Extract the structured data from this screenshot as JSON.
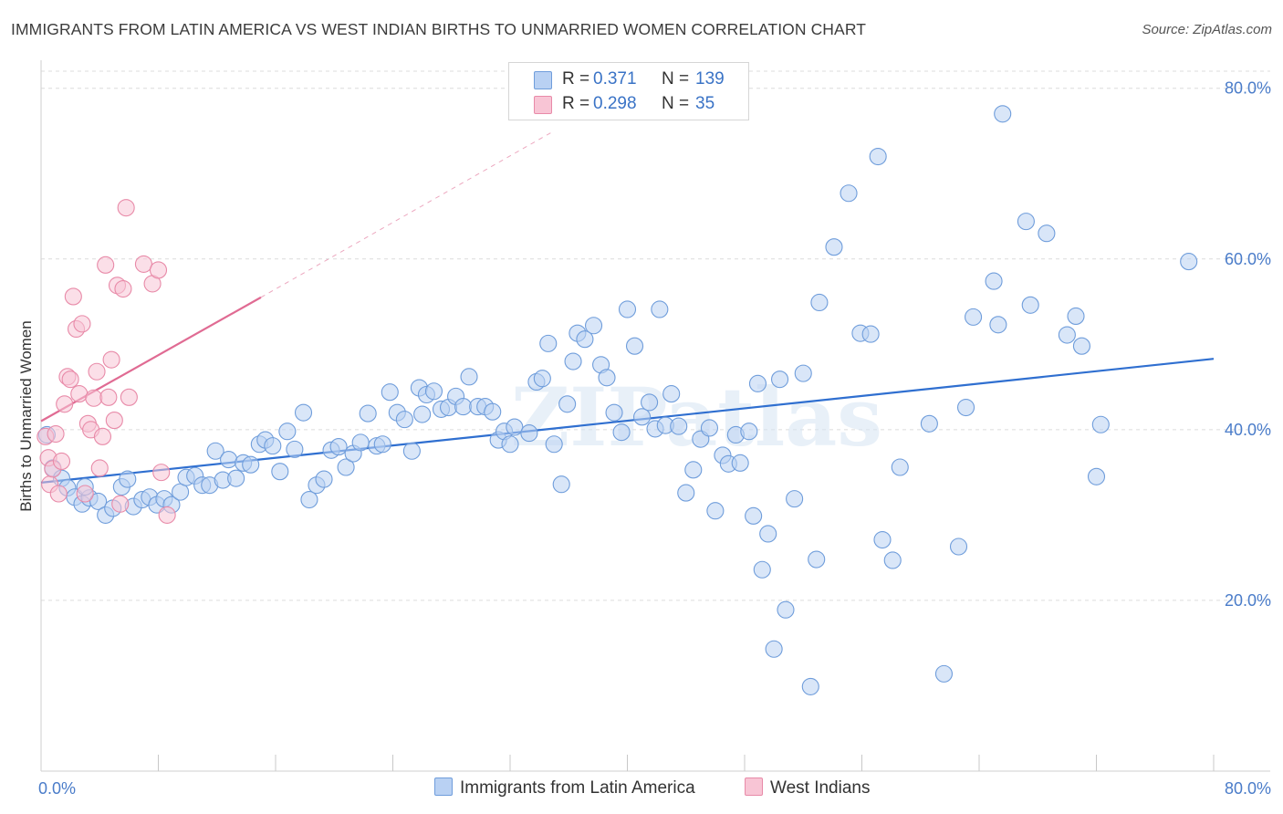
{
  "title": "IMMIGRANTS FROM LATIN AMERICA VS WEST INDIAN BIRTHS TO UNMARRIED WOMEN CORRELATION CHART",
  "source": "Source: ZipAtlas.com",
  "watermark": "ZIPatlas",
  "legend": {
    "rows": [
      {
        "r_label": "R =",
        "r_value": "0.371",
        "n_label": "N =",
        "n_value": "139",
        "color": "#b9d1f3",
        "border": "#6f9ddb"
      },
      {
        "r_label": "R =",
        "r_value": "0.298",
        "n_label": "N =",
        "n_value": "35",
        "color": "#f8c5d5",
        "border": "#e88aa8"
      }
    ]
  },
  "bottom_legend": [
    {
      "label": "Immigrants from Latin America",
      "color": "#b9d1f3",
      "border": "#6f9ddb"
    },
    {
      "label": "West Indians",
      "color": "#f8c5d5",
      "border": "#e88aa8"
    }
  ],
  "chart_data": {
    "type": "scatter",
    "title": "IMMIGRANTS FROM LATIN AMERICA VS WEST INDIAN BIRTHS TO UNMARRIED WOMEN CORRELATION CHART",
    "xlabel": "",
    "ylabel": "Births to Unmarried Women",
    "xlim": [
      0,
      80
    ],
    "ylim": [
      0,
      82
    ],
    "x_tick_labels": [
      "0.0%",
      "80.0%"
    ],
    "y_ticks": [
      20,
      40,
      60,
      80
    ],
    "y_tick_labels": [
      "20.0%",
      "40.0%",
      "60.0%",
      "80.0%"
    ],
    "grid": true,
    "legend_position": "top-center",
    "series": [
      {
        "name": "Immigrants from Latin America",
        "color": "#6f9ddb",
        "fill": "#b9d1f3",
        "trend": {
          "x": [
            0,
            80
          ],
          "y": [
            33.8,
            48.3
          ],
          "color": "#2f6fd0"
        },
        "points": [
          [
            0.4,
            39.4
          ],
          [
            0.8,
            35.5
          ],
          [
            1.4,
            34.3
          ],
          [
            1.8,
            33.2
          ],
          [
            2.3,
            32.1
          ],
          [
            2.8,
            31.3
          ],
          [
            3.3,
            32.0
          ],
          [
            3.9,
            31.6
          ],
          [
            4.4,
            30.0
          ],
          [
            4.9,
            30.8
          ],
          [
            5.5,
            33.3
          ],
          [
            5.9,
            34.2
          ],
          [
            6.3,
            31.0
          ],
          [
            6.9,
            31.8
          ],
          [
            7.4,
            32.1
          ],
          [
            7.9,
            31.2
          ],
          [
            8.4,
            31.9
          ],
          [
            8.9,
            31.2
          ],
          [
            9.5,
            32.7
          ],
          [
            9.9,
            34.4
          ],
          [
            10.5,
            34.6
          ],
          [
            11.0,
            33.5
          ],
          [
            11.5,
            33.5
          ],
          [
            11.9,
            37.5
          ],
          [
            12.4,
            34.1
          ],
          [
            12.8,
            36.5
          ],
          [
            13.3,
            34.3
          ],
          [
            13.8,
            36.1
          ],
          [
            14.3,
            35.9
          ],
          [
            14.9,
            38.3
          ],
          [
            15.3,
            38.8
          ],
          [
            15.8,
            38.1
          ],
          [
            16.3,
            35.1
          ],
          [
            16.8,
            39.8
          ],
          [
            17.3,
            37.7
          ],
          [
            17.9,
            42.0
          ],
          [
            18.3,
            31.8
          ],
          [
            18.8,
            33.5
          ],
          [
            19.3,
            34.2
          ],
          [
            19.8,
            37.6
          ],
          [
            20.3,
            38.0
          ],
          [
            20.8,
            35.6
          ],
          [
            21.3,
            37.2
          ],
          [
            21.8,
            38.5
          ],
          [
            22.3,
            41.9
          ],
          [
            22.9,
            38.1
          ],
          [
            23.3,
            38.3
          ],
          [
            23.8,
            44.4
          ],
          [
            24.3,
            42.0
          ],
          [
            24.8,
            41.2
          ],
          [
            25.3,
            37.5
          ],
          [
            25.8,
            44.9
          ],
          [
            26.3,
            44.1
          ],
          [
            26.8,
            44.5
          ],
          [
            27.3,
            42.4
          ],
          [
            27.8,
            42.6
          ],
          [
            28.3,
            43.9
          ],
          [
            28.8,
            42.7
          ],
          [
            29.2,
            46.2
          ],
          [
            29.8,
            42.7
          ],
          [
            30.3,
            42.7
          ],
          [
            30.8,
            42.1
          ],
          [
            31.2,
            38.8
          ],
          [
            31.6,
            39.8
          ],
          [
            32.0,
            38.3
          ],
          [
            32.3,
            40.3
          ],
          [
            33.3,
            39.6
          ],
          [
            33.8,
            45.6
          ],
          [
            34.2,
            46.0
          ],
          [
            34.6,
            50.1
          ],
          [
            35.0,
            38.3
          ],
          [
            35.5,
            33.6
          ],
          [
            35.9,
            43.0
          ],
          [
            36.3,
            48.0
          ],
          [
            36.6,
            51.3
          ],
          [
            37.1,
            50.6
          ],
          [
            37.7,
            52.2
          ],
          [
            38.2,
            47.6
          ],
          [
            38.6,
            46.1
          ],
          [
            39.1,
            42.0
          ],
          [
            39.6,
            39.7
          ],
          [
            40.0,
            54.1
          ],
          [
            40.5,
            49.8
          ],
          [
            41.0,
            41.5
          ],
          [
            41.5,
            43.2
          ],
          [
            41.9,
            40.1
          ],
          [
            42.2,
            54.1
          ],
          [
            42.6,
            40.5
          ],
          [
            43.0,
            44.2
          ],
          [
            43.5,
            40.4
          ],
          [
            44.0,
            32.6
          ],
          [
            44.5,
            35.3
          ],
          [
            45.0,
            38.9
          ],
          [
            45.6,
            40.2
          ],
          [
            46.0,
            30.5
          ],
          [
            46.5,
            37.0
          ],
          [
            46.9,
            36.0
          ],
          [
            47.4,
            39.4
          ],
          [
            47.7,
            36.1
          ],
          [
            48.3,
            39.8
          ],
          [
            48.6,
            29.9
          ],
          [
            48.9,
            45.4
          ],
          [
            49.2,
            23.6
          ],
          [
            49.6,
            27.8
          ],
          [
            50.0,
            14.3
          ],
          [
            50.4,
            45.9
          ],
          [
            50.8,
            18.9
          ],
          [
            51.4,
            31.9
          ],
          [
            52.0,
            46.6
          ],
          [
            52.5,
            9.9
          ],
          [
            52.9,
            24.8
          ],
          [
            53.1,
            54.9
          ],
          [
            54.1,
            61.4
          ],
          [
            55.1,
            67.7
          ],
          [
            55.9,
            51.3
          ],
          [
            56.6,
            51.2
          ],
          [
            57.1,
            72.0
          ],
          [
            57.4,
            27.1
          ],
          [
            58.1,
            24.7
          ],
          [
            58.6,
            35.6
          ],
          [
            60.6,
            40.7
          ],
          [
            61.6,
            11.4
          ],
          [
            62.6,
            26.3
          ],
          [
            63.1,
            42.6
          ],
          [
            63.6,
            53.2
          ],
          [
            65.0,
            57.4
          ],
          [
            65.3,
            52.3
          ],
          [
            65.6,
            77.0
          ],
          [
            67.2,
            64.4
          ],
          [
            67.5,
            54.6
          ],
          [
            68.6,
            63.0
          ],
          [
            70.0,
            51.1
          ],
          [
            70.6,
            53.3
          ],
          [
            71.0,
            49.8
          ],
          [
            72.0,
            34.5
          ],
          [
            72.3,
            40.6
          ],
          [
            78.3,
            59.7
          ],
          [
            3.0,
            33.3
          ],
          [
            26.0,
            41.8
          ]
        ]
      },
      {
        "name": "West Indians",
        "color": "#e88aa8",
        "fill": "#f8c5d5",
        "trend": {
          "x": [
            0,
            15.0
          ],
          "y": [
            41.0,
            55.5
          ],
          "dash_to": [
            35.0,
            75.0
          ],
          "color": "#e06b93"
        },
        "points": [
          [
            0.3,
            39.2
          ],
          [
            0.5,
            36.7
          ],
          [
            0.6,
            33.6
          ],
          [
            0.8,
            35.4
          ],
          [
            1.0,
            39.5
          ],
          [
            1.2,
            32.5
          ],
          [
            1.4,
            36.3
          ],
          [
            1.6,
            43.0
          ],
          [
            1.8,
            46.2
          ],
          [
            2.0,
            45.9
          ],
          [
            2.2,
            55.6
          ],
          [
            2.4,
            51.8
          ],
          [
            2.6,
            44.2
          ],
          [
            2.8,
            52.4
          ],
          [
            3.0,
            32.5
          ],
          [
            3.2,
            40.7
          ],
          [
            3.4,
            40.0
          ],
          [
            3.6,
            43.7
          ],
          [
            3.8,
            46.8
          ],
          [
            4.0,
            35.5
          ],
          [
            4.2,
            39.2
          ],
          [
            4.4,
            59.3
          ],
          [
            4.6,
            43.8
          ],
          [
            4.8,
            48.2
          ],
          [
            5.0,
            41.1
          ],
          [
            5.2,
            56.9
          ],
          [
            5.4,
            31.3
          ],
          [
            5.6,
            56.5
          ],
          [
            5.8,
            66.0
          ],
          [
            6.0,
            43.8
          ],
          [
            7.0,
            59.4
          ],
          [
            7.6,
            57.1
          ],
          [
            8.0,
            58.7
          ],
          [
            8.2,
            35.0
          ],
          [
            8.6,
            30.0
          ]
        ]
      }
    ]
  }
}
